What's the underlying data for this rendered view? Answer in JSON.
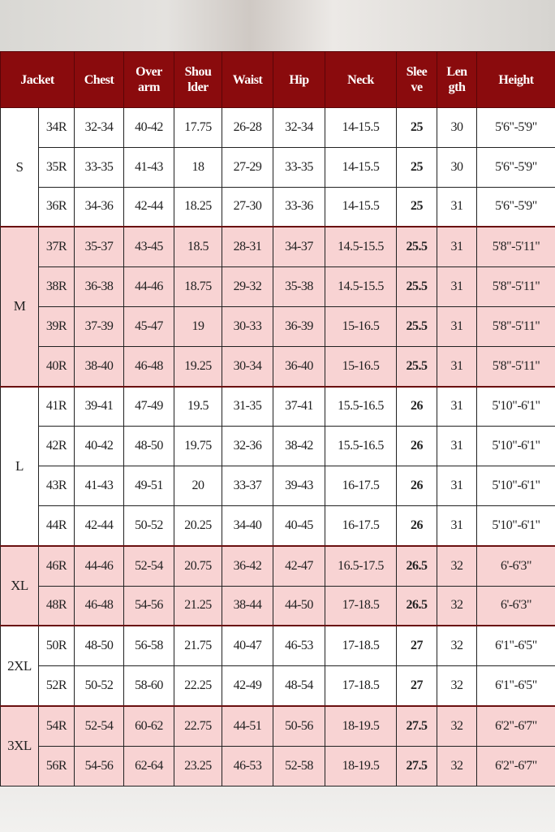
{
  "headers": {
    "jacket": "Jacket",
    "chest": "Chest",
    "over_arm": [
      "Over",
      "arm"
    ],
    "shoulder": [
      "Shou",
      "lder"
    ],
    "waist": "Waist",
    "hip": "Hip",
    "neck": "Neck",
    "sleeve": [
      "Slee",
      "ve"
    ],
    "length": [
      "Len",
      "gth"
    ],
    "height": "Height"
  },
  "colors": {
    "header": "#8a0b0d",
    "pink_row": "#f8d3d3",
    "white_row": "#ffffff"
  },
  "groups": [
    {
      "size": "S",
      "shade": "white",
      "rows": [
        [
          "34R",
          "32-34",
          "40-42",
          "17.75",
          "26-28",
          "32-34",
          "14-15.5",
          "25",
          "30",
          "5'6\"-5'9\""
        ],
        [
          "35R",
          "33-35",
          "41-43",
          "18",
          "27-29",
          "33-35",
          "14-15.5",
          "25",
          "30",
          "5'6\"-5'9\""
        ],
        [
          "36R",
          "34-36",
          "42-44",
          "18.25",
          "27-30",
          "33-36",
          "14-15.5",
          "25",
          "31",
          "5'6\"-5'9\""
        ]
      ]
    },
    {
      "size": "M",
      "shade": "pink",
      "rows": [
        [
          "37R",
          "35-37",
          "43-45",
          "18.5",
          "28-31",
          "34-37",
          "14.5-15.5",
          "25.5",
          "31",
          "5'8\"-5'11\""
        ],
        [
          "38R",
          "36-38",
          "44-46",
          "18.75",
          "29-32",
          "35-38",
          "14.5-15.5",
          "25.5",
          "31",
          "5'8\"-5'11\""
        ],
        [
          "39R",
          "37-39",
          "45-47",
          "19",
          "30-33",
          "36-39",
          "15-16.5",
          "25.5",
          "31",
          "5'8\"-5'11\""
        ],
        [
          "40R",
          "38-40",
          "46-48",
          "19.25",
          "30-34",
          "36-40",
          "15-16.5",
          "25.5",
          "31",
          "5'8\"-5'11\""
        ]
      ]
    },
    {
      "size": "L",
      "shade": "white",
      "rows": [
        [
          "41R",
          "39-41",
          "47-49",
          "19.5",
          "31-35",
          "37-41",
          "15.5-16.5",
          "26",
          "31",
          "5'10\"-6'1\""
        ],
        [
          "42R",
          "40-42",
          "48-50",
          "19.75",
          "32-36",
          "38-42",
          "15.5-16.5",
          "26",
          "31",
          "5'10\"-6'1\""
        ],
        [
          "43R",
          "41-43",
          "49-51",
          "20",
          "33-37",
          "39-43",
          "16-17.5",
          "26",
          "31",
          "5'10\"-6'1\""
        ],
        [
          "44R",
          "42-44",
          "50-52",
          "20.25",
          "34-40",
          "40-45",
          "16-17.5",
          "26",
          "31",
          "5'10\"-6'1\""
        ]
      ]
    },
    {
      "size": "XL",
      "shade": "pink",
      "rows": [
        [
          "46R",
          "44-46",
          "52-54",
          "20.75",
          "36-42",
          "42-47",
          "16.5-17.5",
          "26.5",
          "32",
          "6'-6'3\""
        ],
        [
          "48R",
          "46-48",
          "54-56",
          "21.25",
          "38-44",
          "44-50",
          "17-18.5",
          "26.5",
          "32",
          "6'-6'3\""
        ]
      ]
    },
    {
      "size": "2XL",
      "shade": "white",
      "rows": [
        [
          "50R",
          "48-50",
          "56-58",
          "21.75",
          "40-47",
          "46-53",
          "17-18.5",
          "27",
          "32",
          "6'1\"-6'5\""
        ],
        [
          "52R",
          "50-52",
          "58-60",
          "22.25",
          "42-49",
          "48-54",
          "17-18.5",
          "27",
          "32",
          "6'1\"-6'5\""
        ]
      ]
    },
    {
      "size": "3XL",
      "shade": "pink",
      "rows": [
        [
          "54R",
          "52-54",
          "60-62",
          "22.75",
          "44-51",
          "50-56",
          "18-19.5",
          "27.5",
          "32",
          "6'2\"-6'7\""
        ],
        [
          "56R",
          "54-56",
          "62-64",
          "23.25",
          "46-53",
          "52-58",
          "18-19.5",
          "27.5",
          "32",
          "6'2\"-6'7\""
        ]
      ]
    }
  ]
}
